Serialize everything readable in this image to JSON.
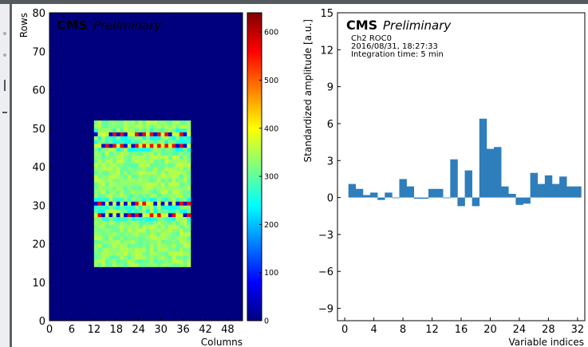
{
  "chart_data": [
    {
      "type": "heatmap",
      "header": {
        "experiment": "CMS",
        "status": "Preliminary"
      },
      "xlabel": "Columns",
      "ylabel": "Rows",
      "xlim": [
        0,
        52
      ],
      "ylim": [
        0,
        80
      ],
      "xticks": [
        "0",
        "6",
        "12",
        "18",
        "24",
        "30",
        "36",
        "42",
        "48"
      ],
      "yticks": [
        "0",
        "10",
        "20",
        "30",
        "40",
        "50",
        "60",
        "70",
        "80"
      ],
      "colormap": "jet",
      "background_color": "#00007f",
      "active_region": {
        "columns": [
          12,
          38
        ],
        "rows": [
          14,
          52
        ],
        "typical_value": 330
      },
      "low_value_rows": [
        {
          "row": 27,
          "value": 60
        },
        {
          "row": 30,
          "value": 60
        },
        {
          "row": 45,
          "value": 60
        },
        {
          "row": 48,
          "value": 60
        }
      ],
      "colorbar": {
        "min": 0,
        "max": 640,
        "ticks": [
          "0",
          "100",
          "200",
          "300",
          "400",
          "500",
          "600"
        ]
      }
    },
    {
      "type": "bar",
      "header": {
        "experiment": "CMS",
        "status": "Preliminary"
      },
      "info_lines": [
        "Ch2 ROC0",
        "2016/08/31, 18:27:33",
        "Integration time: 5 min"
      ],
      "xlabel": "Variable indices",
      "ylabel": "Standardized amplitude [a.u.]",
      "xlim": [
        -1,
        33
      ],
      "ylim": [
        -10,
        15
      ],
      "xticks": [
        "0",
        "4",
        "8",
        "12",
        "16",
        "20",
        "24",
        "28",
        "32"
      ],
      "yticks": [
        "15",
        "12",
        "9",
        "6",
        "3",
        "0",
        "−3",
        "−6",
        "−9"
      ],
      "bar_color": "#2e7ebc",
      "x": [
        1,
        2,
        3,
        4,
        5,
        6,
        7,
        8,
        9,
        10,
        11,
        12,
        13,
        14,
        15,
        16,
        17,
        18,
        19,
        20,
        21,
        22,
        23,
        24,
        25,
        26,
        27,
        28,
        29,
        30,
        31,
        32
      ],
      "values": [
        1.1,
        0.7,
        0.2,
        0.4,
        -0.2,
        0.4,
        0.0,
        1.5,
        0.9,
        -0.1,
        -0.1,
        0.7,
        0.7,
        -0.05,
        3.1,
        -0.7,
        2.2,
        -0.7,
        6.4,
        3.95,
        4.1,
        0.9,
        0.3,
        -0.6,
        -0.5,
        2.0,
        1.1,
        1.8,
        1.1,
        1.7,
        0.9,
        0.9
      ]
    }
  ]
}
